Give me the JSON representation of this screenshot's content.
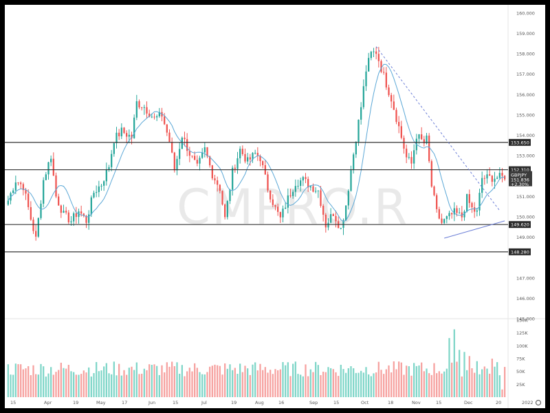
{
  "chart_data": {
    "type": "candlestick",
    "symbol": "GBPJPY",
    "last_price": "151.836",
    "change_percent": "+2.30%",
    "watermark": "CMPRO.R",
    "price_axis": {
      "ticks": [
        "160.000",
        "159.000",
        "158.000",
        "157.000",
        "156.000",
        "155.000",
        "154.000",
        "153.000",
        "151.000",
        "150.000",
        "149.000",
        "147.000",
        "146.000",
        "145.000"
      ],
      "range": [
        145.0,
        160.4
      ]
    },
    "horizontal_levels": [
      {
        "price": 153.65,
        "label": "153.650"
      },
      {
        "price": 152.31,
        "label": "152.310"
      },
      {
        "price": 149.62,
        "label": "149.620"
      },
      {
        "price": 148.28,
        "label": "148.280"
      }
    ],
    "volume_axis": {
      "ticks": [
        "150K",
        "125K",
        "100K",
        "75K",
        "50K",
        "25K"
      ],
      "range": [
        0,
        150000
      ]
    },
    "time_axis": {
      "labels": [
        "15",
        "Apr",
        "19",
        "May",
        "17",
        "Jun",
        "15",
        "Jul",
        "19",
        "Aug",
        "16",
        "Sep",
        "15",
        "Oct",
        "18",
        "Nov",
        "15",
        "Dec",
        "20",
        "2022"
      ]
    },
    "trendlines": [
      {
        "kind": "dashed-resistance",
        "from": {
          "bar": 146,
          "price": 158.35
        },
        "to": {
          "bar": 195,
          "price": 150.3
        }
      },
      {
        "kind": "support",
        "from": {
          "bar": 173,
          "price": 148.95
        },
        "to": {
          "bar": 197,
          "price": 149.8
        }
      }
    ],
    "moving_average": {
      "period": 9,
      "color": "#5aa7d6"
    },
    "anchors": [
      [
        0,
        150.8
      ],
      [
        3,
        151.8
      ],
      [
        6,
        151.5
      ],
      [
        9,
        149.9
      ],
      [
        11,
        148.9
      ],
      [
        14,
        151.8
      ],
      [
        17,
        153.0
      ],
      [
        19,
        151.0
      ],
      [
        22,
        150.1
      ],
      [
        25,
        149.8
      ],
      [
        28,
        150.3
      ],
      [
        31,
        149.8
      ],
      [
        34,
        151.2
      ],
      [
        37,
        151.6
      ],
      [
        40,
        152.5
      ],
      [
        42,
        153.8
      ],
      [
        45,
        154.2
      ],
      [
        49,
        153.9
      ],
      [
        51,
        155.6
      ],
      [
        54,
        155.4
      ],
      [
        58,
        154.8
      ],
      [
        61,
        155.0
      ],
      [
        64,
        153.7
      ],
      [
        66,
        152.3
      ],
      [
        69,
        154.0
      ],
      [
        72,
        153.1
      ],
      [
        75,
        152.4
      ],
      [
        78,
        153.3
      ],
      [
        81,
        152.1
      ],
      [
        84,
        151.4
      ],
      [
        86,
        149.9
      ],
      [
        89,
        152.2
      ],
      [
        92,
        153.3
      ],
      [
        95,
        152.7
      ],
      [
        98,
        153.1
      ],
      [
        100,
        152.9
      ],
      [
        103,
        151.4
      ],
      [
        106,
        150.4
      ],
      [
        108,
        149.9
      ],
      [
        111,
        150.9
      ],
      [
        114,
        151.7
      ],
      [
        117,
        151.8
      ],
      [
        120,
        151.5
      ],
      [
        123,
        151.3
      ],
      [
        126,
        149.6
      ],
      [
        129,
        150.2
      ],
      [
        132,
        149.4
      ],
      [
        134,
        150.6
      ],
      [
        136,
        152.3
      ],
      [
        138,
        153.9
      ],
      [
        140,
        155.4
      ],
      [
        142,
        157.2
      ],
      [
        144,
        158.0
      ],
      [
        146,
        158.1
      ],
      [
        149,
        156.9
      ],
      [
        152,
        155.8
      ],
      [
        155,
        154.4
      ],
      [
        158,
        152.9
      ],
      [
        160,
        152.6
      ],
      [
        162,
        154.0
      ],
      [
        165,
        153.6
      ],
      [
        166,
        153.8
      ],
      [
        168,
        151.5
      ],
      [
        170,
        150.2
      ],
      [
        172,
        149.7
      ],
      [
        175,
        150.0
      ],
      [
        177,
        150.2
      ],
      [
        180,
        150.0
      ],
      [
        182,
        150.9
      ],
      [
        184,
        150.4
      ],
      [
        186,
        150.2
      ],
      [
        188,
        151.9
      ]
    ],
    "volume_profile": {
      "base": 55000,
      "spikes": [
        {
          "bar": 175,
          "value": 115000
        },
        {
          "bar": 177,
          "value": 132000
        },
        {
          "bar": 179,
          "value": 92000
        },
        {
          "bar": 181,
          "value": 88000
        },
        {
          "bar": 183,
          "value": 80000
        },
        {
          "bar": 186,
          "value": 70000
        },
        {
          "bar": 192,
          "value": 75000
        },
        {
          "bar": 196,
          "value": 15000
        }
      ]
    },
    "colors": {
      "up": "#26a69a",
      "down": "#ef5350",
      "up_volume": "#7fd6c8",
      "down_volume": "#f6a19f",
      "level_line": "#333333",
      "level_label_bg": "#2b2b2b",
      "symbol_label_bg": "#3b3b3b",
      "trendline": "#6b7ed6"
    }
  }
}
